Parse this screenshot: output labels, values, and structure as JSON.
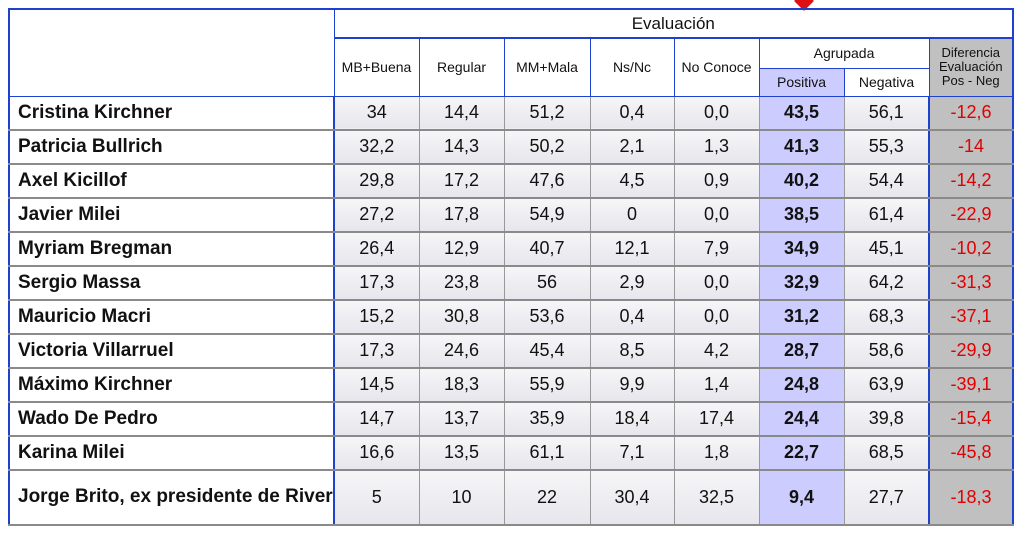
{
  "header": {
    "evaluacion": "Evaluación",
    "columns": [
      "MB+Buena",
      "Regular",
      "MM+Mala",
      "Ns/Nc",
      "No Conoce"
    ],
    "agrupada": "Agrupada",
    "agrupada_columns": [
      "Positiva",
      "Negativa"
    ],
    "diferencia": [
      "Diferencia",
      "Evaluación",
      "Pos - Neg"
    ]
  },
  "table": {
    "rows": [
      {
        "name": "Cristina Kirchner",
        "values": [
          "34",
          "14,4",
          "51,2",
          "0,4",
          "0,0",
          "43,5",
          "56,1",
          "-12,6"
        ]
      },
      {
        "name": "Patricia Bullrich",
        "values": [
          "32,2",
          "14,3",
          "50,2",
          "2,1",
          "1,3",
          "41,3",
          "55,3",
          "-14"
        ]
      },
      {
        "name": "Axel Kicillof",
        "values": [
          "29,8",
          "17,2",
          "47,6",
          "4,5",
          "0,9",
          "40,2",
          "54,4",
          "-14,2"
        ]
      },
      {
        "name": "Javier Milei",
        "values": [
          "27,2",
          "17,8",
          "54,9",
          "0",
          "0,0",
          "38,5",
          "61,4",
          "-22,9"
        ]
      },
      {
        "name": "Myriam Bregman",
        "values": [
          "26,4",
          "12,9",
          "40,7",
          "12,1",
          "7,9",
          "34,9",
          "45,1",
          "-10,2"
        ]
      },
      {
        "name": "Sergio Massa",
        "values": [
          "17,3",
          "23,8",
          "56",
          "2,9",
          "0,0",
          "32,9",
          "64,2",
          "-31,3"
        ]
      },
      {
        "name": "Mauricio Macri",
        "values": [
          "15,2",
          "30,8",
          "53,6",
          "0,4",
          "0,0",
          "31,2",
          "68,3",
          "-37,1"
        ]
      },
      {
        "name": "Victoria Villarruel",
        "values": [
          "17,3",
          "24,6",
          "45,4",
          "8,5",
          "4,2",
          "28,7",
          "58,6",
          "-29,9"
        ]
      },
      {
        "name": "Máximo Kirchner",
        "values": [
          "14,5",
          "18,3",
          "55,9",
          "9,9",
          "1,4",
          "24,8",
          "63,9",
          "-39,1"
        ]
      },
      {
        "name": "Wado De Pedro",
        "values": [
          "14,7",
          "13,7",
          "35,9",
          "18,4",
          "17,4",
          "24,4",
          "39,8",
          "-15,4"
        ]
      },
      {
        "name": "Karina Milei",
        "values": [
          "16,6",
          "13,5",
          "61,1",
          "7,1",
          "1,8",
          "22,7",
          "68,5",
          "-45,8"
        ]
      },
      {
        "name": "Jorge Brito, ex presidente de River",
        "values": [
          "5",
          "10",
          "22",
          "30,4",
          "32,5",
          "9,4",
          "27,7",
          "-18,3"
        ]
      }
    ]
  }
}
